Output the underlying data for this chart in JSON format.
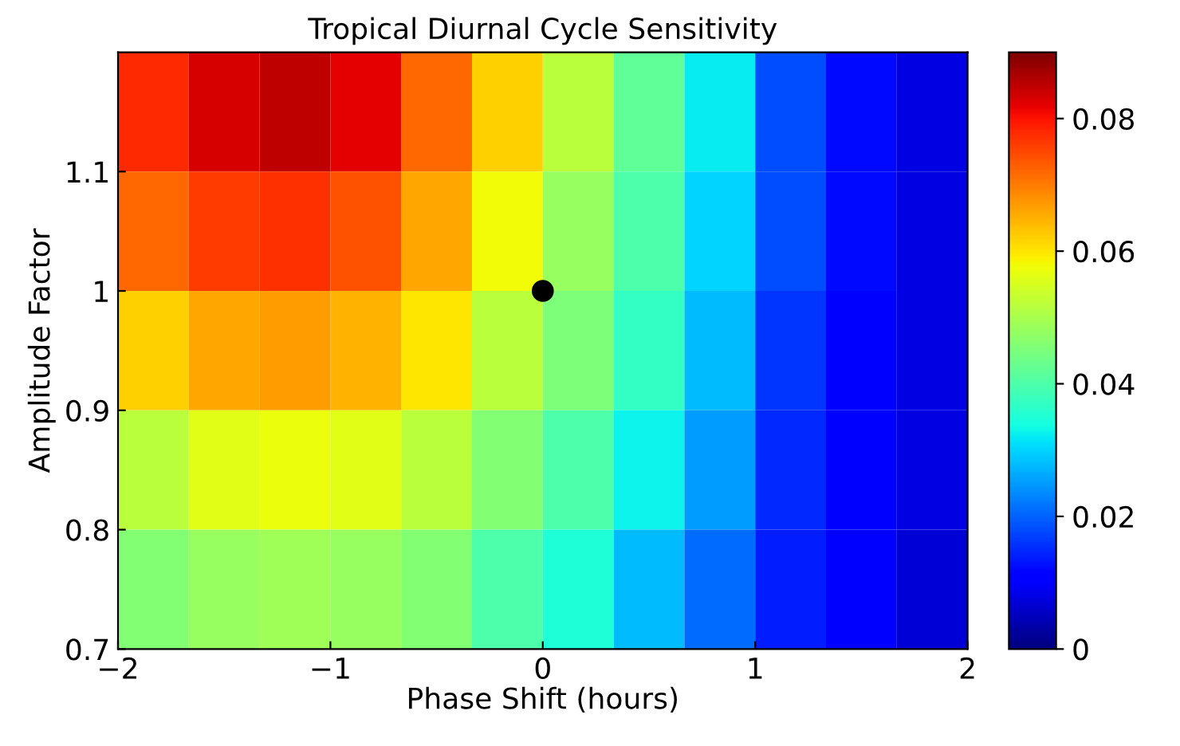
{
  "chart_data": {
    "type": "heatmap",
    "title": "Tropical Diurnal Cycle Sensitivity",
    "xlabel": "Phase Shift (hours)",
    "ylabel": "Amplitude Factor",
    "xlim": [
      -2,
      2
    ],
    "xticks": [
      {
        "value": -2,
        "label": "−2"
      },
      {
        "value": -1,
        "label": "−1"
      },
      0,
      1,
      2
    ],
    "ylim": [
      0.7,
      1.2
    ],
    "yticks": [
      0.7,
      0.8,
      0.9,
      1,
      1.1
    ],
    "clim": [
      0,
      0.09
    ],
    "cticks": [
      0,
      0.02,
      0.04,
      0.06,
      0.08
    ],
    "cells": [
      [
        0.078,
        0.083,
        0.085,
        0.082,
        0.072,
        0.062,
        0.052,
        0.042,
        0.032,
        0.018,
        0.012,
        0.008
      ],
      [
        0.072,
        0.076,
        0.077,
        0.074,
        0.066,
        0.058,
        0.048,
        0.04,
        0.03,
        0.018,
        0.012,
        0.008
      ],
      [
        0.062,
        0.066,
        0.067,
        0.065,
        0.06,
        0.052,
        0.045,
        0.037,
        0.028,
        0.016,
        0.011,
        0.008
      ],
      [
        0.052,
        0.056,
        0.057,
        0.056,
        0.052,
        0.046,
        0.04,
        0.033,
        0.025,
        0.015,
        0.011,
        0.008
      ],
      [
        0.046,
        0.048,
        0.049,
        0.048,
        0.046,
        0.04,
        0.035,
        0.028,
        0.021,
        0.014,
        0.01,
        0.007
      ]
    ],
    "series": [
      {
        "type": "scatter",
        "x": [
          0
        ],
        "values": [
          1
        ],
        "color": "#000000",
        "marker": "circle"
      }
    ],
    "grid": false
  }
}
